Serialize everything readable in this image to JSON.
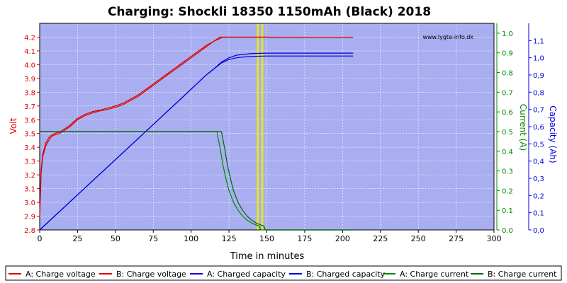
{
  "chart_data": {
    "type": "line",
    "title": "Charging: Shockli 18350 1150mAh (Black) 2018",
    "watermark": "www.lygte-info.dk",
    "xlabel": "Time in minutes",
    "ylabel_left": "Volt",
    "ylabel_right1": "Current (A)",
    "ylabel_right2": "Capacity (Ah)",
    "xlim": [
      0,
      300
    ],
    "ylim_volt": [
      2.8,
      4.3
    ],
    "ylim_current": [
      0,
      1.05
    ],
    "ylim_capacity": [
      0,
      1.2
    ],
    "x_ticks": [
      "0",
      "25",
      "50",
      "75",
      "100",
      "125",
      "150",
      "175",
      "200",
      "225",
      "250",
      "275",
      "300"
    ],
    "volt_ticks": [
      "2.8",
      "2.9",
      "3.0",
      "3.1",
      "3.2",
      "3.3",
      "3.4",
      "3.5",
      "3.6",
      "3.7",
      "3.8",
      "3.9",
      "4.0",
      "4.1",
      "4.2"
    ],
    "current_ticks": [
      "0.0",
      "0.1",
      "0.2",
      "0.3",
      "0.4",
      "0.5",
      "0.6",
      "0.7",
      "0.8",
      "0.9",
      "1.0"
    ],
    "capacity_ticks": [
      "0,0",
      "0,1",
      "0,2",
      "0,3",
      "0,4",
      "0,5",
      "0,6",
      "0,7",
      "0,8",
      "0,9",
      "1,0",
      "1,1"
    ],
    "grid": true,
    "legend_position": "bottom",
    "colors": {
      "plot_bg": "#a8aef0",
      "grid": "#ffffff",
      "voltage": "#dd0000",
      "capacity": "#0000dd",
      "current": "#008800",
      "marker": "#eeee00",
      "title": "#000000"
    },
    "markers_x": [
      144,
      147
    ],
    "series": [
      {
        "name": "A: Charge voltage",
        "axis": "volt",
        "color": "#dd0000",
        "x": [
          0,
          1,
          2,
          4,
          6,
          8,
          10,
          13,
          16,
          20,
          25,
          30,
          35,
          40,
          45,
          50,
          55,
          60,
          65,
          70,
          75,
          80,
          85,
          90,
          95,
          100,
          105,
          110,
          115,
          119,
          125,
          135,
          150,
          175,
          207
        ],
        "y": [
          2.9,
          3.22,
          3.33,
          3.41,
          3.45,
          3.48,
          3.49,
          3.5,
          3.52,
          3.55,
          3.6,
          3.63,
          3.65,
          3.665,
          3.675,
          3.69,
          3.71,
          3.74,
          3.77,
          3.81,
          3.85,
          3.89,
          3.93,
          3.97,
          4.01,
          4.05,
          4.09,
          4.13,
          4.17,
          4.2,
          4.2,
          4.2,
          4.2,
          4.195,
          4.195
        ]
      },
      {
        "name": "B: Charge voltage",
        "axis": "volt",
        "color": "#dd0000",
        "x": [
          0,
          1,
          2,
          4,
          6,
          8,
          10,
          13,
          16,
          20,
          25,
          30,
          35,
          40,
          45,
          50,
          55,
          60,
          65,
          70,
          75,
          80,
          85,
          90,
          95,
          100,
          105,
          110,
          115,
          121,
          125,
          135,
          150,
          175,
          207
        ],
        "y": [
          2.92,
          3.24,
          3.35,
          3.43,
          3.47,
          3.49,
          3.5,
          3.51,
          3.53,
          3.56,
          3.61,
          3.64,
          3.66,
          3.67,
          3.685,
          3.7,
          3.72,
          3.75,
          3.78,
          3.82,
          3.86,
          3.9,
          3.94,
          3.98,
          4.02,
          4.06,
          4.1,
          4.14,
          4.17,
          4.2,
          4.2,
          4.2,
          4.2,
          4.195,
          4.195
        ]
      },
      {
        "name": "A: Charged capacity",
        "axis": "capacity",
        "color": "#0000dd",
        "x": [
          0,
          30,
          60,
          90,
          110,
          115,
          120,
          125,
          130,
          135,
          140,
          150,
          170,
          207
        ],
        "y": [
          0,
          0.245,
          0.49,
          0.735,
          0.9,
          0.935,
          0.97,
          0.99,
          1.0,
          1.005,
          1.008,
          1.01,
          1.01,
          1.01
        ]
      },
      {
        "name": "B: Charged capacity",
        "axis": "capacity",
        "color": "#0000dd",
        "x": [
          0,
          30,
          60,
          90,
          110,
          115,
          120,
          125,
          130,
          135,
          140,
          150,
          170,
          207
        ],
        "y": [
          0,
          0.245,
          0.49,
          0.735,
          0.9,
          0.935,
          0.975,
          1.0,
          1.015,
          1.02,
          1.025,
          1.027,
          1.027,
          1.027
        ]
      },
      {
        "name": "A: Charge current",
        "axis": "current",
        "color": "#008800",
        "x": [
          0,
          117,
          119,
          121,
          123,
          125,
          128,
          131,
          134,
          137,
          140,
          143,
          145,
          146,
          207
        ],
        "y": [
          0.5,
          0.5,
          0.42,
          0.33,
          0.26,
          0.2,
          0.14,
          0.1,
          0.07,
          0.05,
          0.035,
          0.025,
          0.02,
          0.0,
          0.0
        ]
      },
      {
        "name": "B: Charge current",
        "axis": "current",
        "color": "#006600",
        "x": [
          0,
          120,
          122,
          124,
          126,
          128,
          131,
          134,
          137,
          140,
          143,
          146,
          148,
          149,
          207
        ],
        "y": [
          0.5,
          0.5,
          0.42,
          0.33,
          0.26,
          0.2,
          0.14,
          0.1,
          0.07,
          0.05,
          0.035,
          0.025,
          0.02,
          0.0,
          0.0
        ]
      }
    ]
  }
}
